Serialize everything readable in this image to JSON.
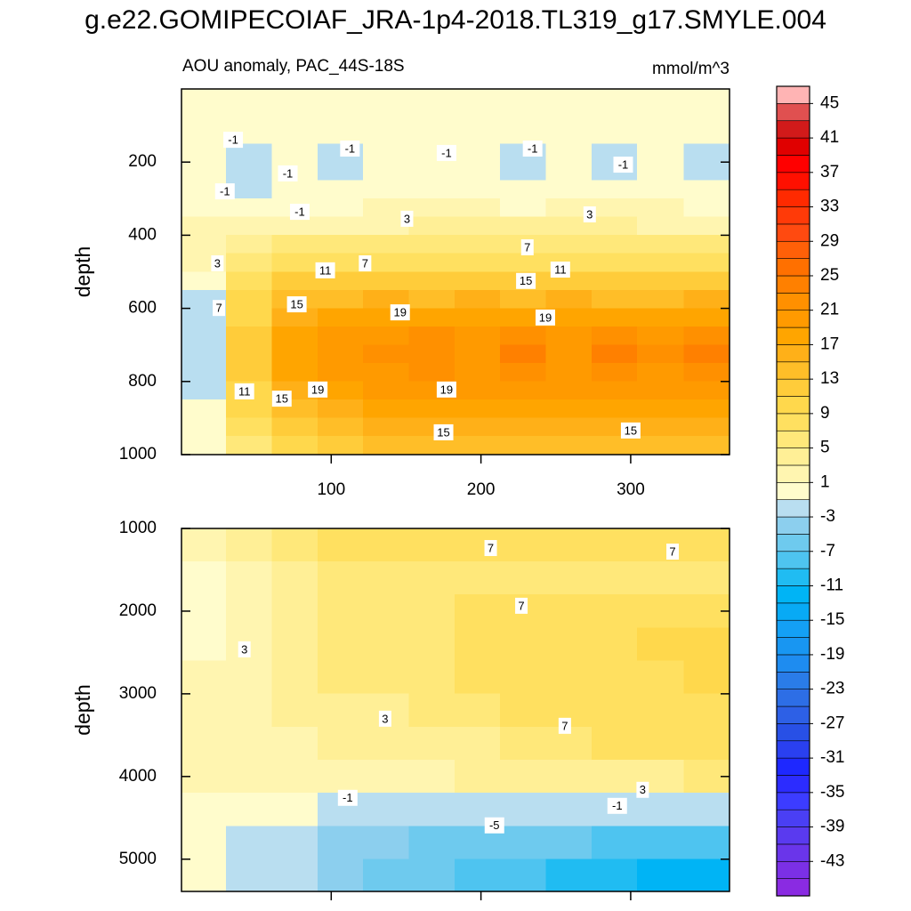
{
  "title": "g.e22.GOMIPECOIAF_JRA-1p4-2018.TL319_g17.SMYLE.004",
  "chart_data": [
    {
      "type": "contour",
      "title": "AOU anomaly, PAC_44S-18S",
      "units": "mmol/m^3",
      "y_label": "depth",
      "xlim": [
        0,
        366
      ],
      "ylim": [
        0,
        1000
      ],
      "y_reversed": true,
      "xticks": [
        100,
        200,
        300
      ],
      "xtick_labels": true,
      "yticks": [
        200,
        400,
        600,
        800,
        1000
      ],
      "x": [
        15,
        45,
        76,
        106,
        137,
        167,
        198,
        228,
        259,
        289,
        320,
        351
      ],
      "y": [
        25,
        75,
        125,
        175,
        225,
        275,
        325,
        375,
        425,
        475,
        525,
        575,
        625,
        675,
        725,
        775,
        825,
        875,
        925,
        975
      ],
      "z": [
        [
          0,
          0,
          0,
          0,
          0,
          0,
          0,
          0,
          0,
          0,
          0,
          0
        ],
        [
          0,
          0,
          0,
          0,
          0,
          0,
          0,
          0,
          0,
          0,
          0,
          0
        ],
        [
          0,
          -1,
          0,
          0,
          0,
          0,
          0,
          0,
          0,
          0,
          0,
          0
        ],
        [
          0,
          -2,
          0,
          -2,
          0,
          0,
          0,
          -2,
          0,
          -2,
          0,
          -2
        ],
        [
          0,
          -2,
          -1,
          -2,
          0,
          0,
          0,
          -2,
          0,
          -2,
          0,
          -2
        ],
        [
          0,
          -2,
          0,
          -1,
          0,
          0,
          0,
          -1,
          0,
          0,
          0,
          -1
        ],
        [
          0,
          -1,
          0,
          0,
          1,
          1,
          1,
          0,
          1,
          1,
          1,
          0
        ],
        [
          1,
          2,
          2,
          2,
          2,
          3,
          3,
          3,
          3,
          3,
          2,
          2
        ],
        [
          2,
          4,
          5,
          5,
          5,
          5,
          5,
          5,
          5,
          5,
          5,
          5
        ],
        [
          2,
          6,
          8,
          8,
          8,
          8,
          8,
          8,
          8,
          8,
          8,
          8
        ],
        [
          0,
          8,
          11,
          11,
          11,
          11,
          11,
          11,
          11,
          11,
          11,
          11
        ],
        [
          -2,
          9,
          14,
          14,
          15,
          14,
          15,
          14,
          15,
          14,
          14,
          15
        ],
        [
          -2,
          10,
          16,
          17,
          18,
          18,
          18,
          18,
          18,
          18,
          18,
          18
        ],
        [
          -2,
          11,
          17,
          20,
          20,
          21,
          20,
          21,
          20,
          21,
          20,
          21
        ],
        [
          -2,
          11,
          17,
          20,
          21,
          22,
          20,
          23,
          20,
          23,
          21,
          23
        ],
        [
          -2,
          11,
          17,
          19,
          20,
          21,
          20,
          21,
          20,
          21,
          20,
          21
        ],
        [
          -2,
          10,
          16,
          18,
          19,
          19,
          19,
          19,
          19,
          19,
          19,
          19
        ],
        [
          -1,
          9,
          14,
          16,
          17,
          17,
          17,
          17,
          17,
          17,
          17,
          17
        ],
        [
          -1,
          7,
          12,
          14,
          15,
          15,
          15,
          15,
          15,
          15,
          15,
          15
        ],
        [
          0,
          6,
          10,
          12,
          13,
          13,
          13,
          13,
          13,
          13,
          13,
          13
        ]
      ],
      "contour_labels": [
        {
          "x": 34.5,
          "y": 139,
          "value": -1
        },
        {
          "x": 71,
          "y": 231,
          "value": -1
        },
        {
          "x": 29,
          "y": 280,
          "value": -1
        },
        {
          "x": 79,
          "y": 336,
          "value": -1
        },
        {
          "x": 112.5,
          "y": 163,
          "value": -1
        },
        {
          "x": 177,
          "y": 175,
          "value": -1
        },
        {
          "x": 234.5,
          "y": 163,
          "value": -1
        },
        {
          "x": 295,
          "y": 207,
          "value": -1
        },
        {
          "x": 150.6,
          "y": 355,
          "value": 3
        },
        {
          "x": 272.6,
          "y": 343,
          "value": 3
        },
        {
          "x": 24,
          "y": 477,
          "value": 3
        },
        {
          "x": 25,
          "y": 599,
          "value": 7
        },
        {
          "x": 122.6,
          "y": 477,
          "value": 7
        },
        {
          "x": 231,
          "y": 433,
          "value": 7
        },
        {
          "x": 96,
          "y": 496,
          "value": 11
        },
        {
          "x": 253,
          "y": 494,
          "value": 11
        },
        {
          "x": 77,
          "y": 589,
          "value": 15
        },
        {
          "x": 230,
          "y": 525,
          "value": 15
        },
        {
          "x": 146,
          "y": 611,
          "value": 19
        },
        {
          "x": 243,
          "y": 625,
          "value": 19
        },
        {
          "x": 42,
          "y": 827,
          "value": 11
        },
        {
          "x": 67,
          "y": 847,
          "value": 15
        },
        {
          "x": 91,
          "y": 822,
          "value": 19
        },
        {
          "x": 177,
          "y": 822,
          "value": 19
        },
        {
          "x": 175,
          "y": 939,
          "value": 15
        },
        {
          "x": 300,
          "y": 934,
          "value": 15
        }
      ]
    },
    {
      "type": "contour",
      "y_label": "depth",
      "xlim": [
        0,
        366
      ],
      "ylim": [
        1000,
        5390
      ],
      "y_reversed": true,
      "xticks": [
        100,
        200,
        300
      ],
      "xtick_labels": false,
      "yticks": [
        1000,
        2000,
        3000,
        4000,
        5000
      ],
      "x": [
        15,
        45,
        76,
        106,
        137,
        167,
        198,
        228,
        259,
        289,
        320,
        351
      ],
      "y": [
        1200,
        1600,
        2000,
        2400,
        2800,
        3200,
        3600,
        4000,
        4400,
        4800,
        5200
      ],
      "z": [
        [
          1,
          4,
          6,
          7,
          7,
          7,
          7,
          7,
          7,
          7,
          7,
          7
        ],
        [
          0,
          2,
          4,
          5,
          5,
          6,
          6,
          6,
          6,
          6,
          6,
          6
        ],
        [
          -1,
          2,
          4,
          5,
          5,
          6,
          7,
          7,
          7,
          7,
          7,
          7
        ],
        [
          0,
          2,
          4,
          5,
          6,
          6,
          7,
          8,
          8,
          8,
          9,
          9
        ],
        [
          1,
          2,
          3,
          5,
          5,
          6,
          7,
          7,
          8,
          8,
          8,
          9
        ],
        [
          1,
          2,
          3,
          3,
          4,
          5,
          6,
          7,
          7,
          8,
          8,
          8
        ],
        [
          1,
          2,
          2,
          3,
          3,
          4,
          4,
          5,
          6,
          7,
          7,
          7
        ],
        [
          1,
          1,
          2,
          2,
          2,
          2,
          3,
          3,
          3,
          3,
          4,
          5
        ],
        [
          0,
          -1,
          -1,
          -2,
          -2,
          -2,
          -2,
          -2,
          -2,
          -2,
          -2,
          -2
        ],
        [
          0,
          -2,
          -3,
          -4,
          -5,
          -6,
          -6,
          -7,
          -7,
          -8,
          -8,
          -8
        ],
        [
          0,
          -2,
          -3,
          -5,
          -6,
          -7,
          -8,
          -9,
          -10,
          -11,
          -12,
          -12
        ]
      ],
      "contour_labels": [
        {
          "x": 206.5,
          "y": 1237,
          "value": 7
        },
        {
          "x": 328,
          "y": 1280,
          "value": 7
        },
        {
          "x": 227,
          "y": 1935,
          "value": 7
        },
        {
          "x": 42,
          "y": 2462,
          "value": 3
        },
        {
          "x": 136,
          "y": 3301,
          "value": 3
        },
        {
          "x": 256,
          "y": 3387,
          "value": 7
        },
        {
          "x": 308,
          "y": 4161,
          "value": 3
        },
        {
          "x": 111,
          "y": 4258,
          "value": -1
        },
        {
          "x": 291,
          "y": 4355,
          "value": -1
        },
        {
          "x": 209,
          "y": 4591,
          "value": -5
        }
      ]
    }
  ],
  "colorbar": {
    "clim": [
      -47,
      47
    ],
    "step": 2,
    "ticks": [
      45,
      41,
      37,
      33,
      29,
      25,
      21,
      17,
      13,
      9,
      5,
      1,
      -3,
      -7,
      -11,
      -15,
      -19,
      -23,
      -27,
      -31,
      -35,
      -39,
      -43
    ],
    "colors": [
      "#8a2be2",
      "#7b30e6",
      "#6a35ea",
      "#5a3aef",
      "#4a3ff4",
      "#3c3cff",
      "#2c2cff",
      "#1e28ff",
      "#2a40f0",
      "#2850e6",
      "#2d60e6",
      "#2d6ee6",
      "#2a7ce8",
      "#1e8cf0",
      "#1896f2",
      "#14a0f5",
      "#08aaf5",
      "#00b4f5",
      "#20bcf2",
      "#4ec4f0",
      "#6ecaee",
      "#8ccfee",
      "#b9def0",
      "#fffccc",
      "#fff5b0",
      "#ffef96",
      "#ffe87a",
      "#ffe060",
      "#ffd84c",
      "#ffcc3a",
      "#ffbe28",
      "#ffb018",
      "#ffa500",
      "#ff9a00",
      "#ff9000",
      "#ff8000",
      "#ff7000",
      "#ff6008",
      "#ff4a10",
      "#ff3a08",
      "#ff2a00",
      "#ff1000",
      "#ff0000",
      "#e00000",
      "#d21a1a",
      "#e05050",
      "#ffb4b4"
    ]
  }
}
